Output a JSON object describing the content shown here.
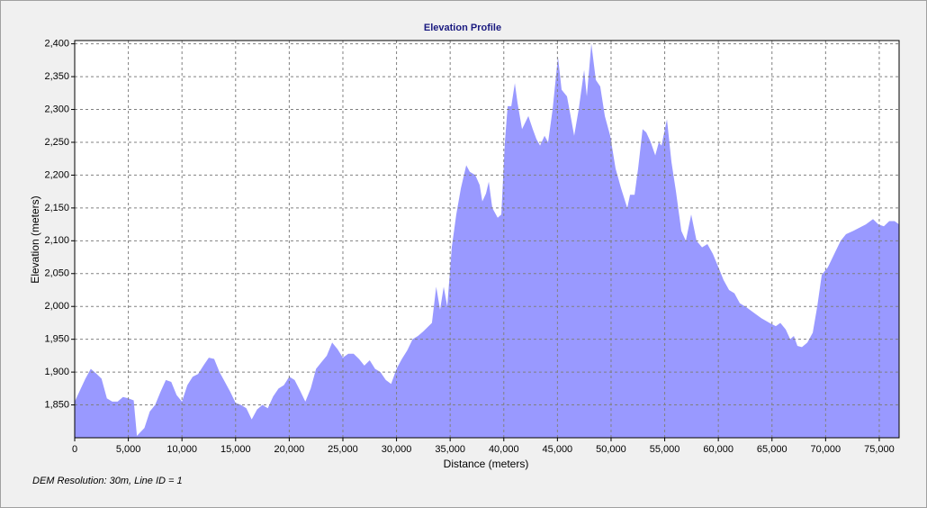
{
  "chart_data": {
    "type": "area",
    "title": "Elevation Profile",
    "x_label": "Distance (meters)",
    "y_label": "Elevation (meters)",
    "note": "DEM Resolution: 30m, Line ID = 1",
    "color": "#9999ff",
    "grid": true,
    "xlim": [
      0,
      76850
    ],
    "ylim": [
      1800,
      2405
    ],
    "xticks": [
      0,
      {
        "value": 5000,
        "label": "5,000"
      },
      {
        "value": 10000,
        "label": "10,000"
      },
      {
        "value": 15000,
        "label": "15,000"
      },
      {
        "value": 20000,
        "label": "20,000"
      },
      {
        "value": 25000,
        "label": "25,000"
      },
      {
        "value": 30000,
        "label": "30,000"
      },
      {
        "value": 35000,
        "label": "35,000"
      },
      {
        "value": 40000,
        "label": "40,000"
      },
      {
        "value": 45000,
        "label": "45,000"
      },
      {
        "value": 50000,
        "label": "50,000"
      },
      {
        "value": 55000,
        "label": "55,000"
      },
      {
        "value": 60000,
        "label": "60,000"
      },
      {
        "value": 65000,
        "label": "65,000"
      },
      {
        "value": 70000,
        "label": "70,000"
      },
      {
        "value": 75000,
        "label": "75,000"
      }
    ],
    "yticks": [
      {
        "value": 1850,
        "label": "1,850"
      },
      {
        "value": 1900,
        "label": "1,900"
      },
      {
        "value": 1950,
        "label": "1,950"
      },
      {
        "value": 2000,
        "label": "2,000"
      },
      {
        "value": 2050,
        "label": "2,050"
      },
      {
        "value": 2100,
        "label": "2,100"
      },
      {
        "value": 2150,
        "label": "2,150"
      },
      {
        "value": 2200,
        "label": "2,200"
      },
      {
        "value": 2250,
        "label": "2,250"
      },
      {
        "value": 2300,
        "label": "2,300"
      },
      {
        "value": 2350,
        "label": "2,350"
      },
      {
        "value": 2400,
        "label": "2,400"
      }
    ],
    "x": [
      0,
      1000,
      1500,
      2000,
      2500,
      3000,
      3500,
      4000,
      4500,
      5000,
      5500,
      5800,
      6500,
      7000,
      7500,
      8000,
      8500,
      9000,
      9500,
      10000,
      10500,
      11000,
      11500,
      12000,
      12500,
      13000,
      13500,
      14000,
      14500,
      15000,
      15500,
      16000,
      16500,
      17000,
      17500,
      18000,
      18500,
      19000,
      19500,
      20000,
      20500,
      21000,
      21500,
      22000,
      22500,
      23000,
      23500,
      24000,
      24500,
      25000,
      25500,
      26000,
      26500,
      27000,
      27500,
      28000,
      28500,
      29000,
      29500,
      30000,
      30500,
      31000,
      31500,
      32000,
      32500,
      33300,
      33700,
      34060,
      34400,
      34730,
      35150,
      35570,
      36000,
      36500,
      36830,
      37340,
      37750,
      38000,
      38340,
      38600,
      38930,
      39430,
      39770,
      40100,
      40360,
      40700,
      41030,
      41280,
      41700,
      42290,
      42700,
      43040,
      43380,
      43800,
      44130,
      44550,
      45050,
      45390,
      45890,
      46230,
      46560,
      46980,
      47490,
      47740,
      48160,
      48580,
      48990,
      49420,
      49920,
      50420,
      50930,
      51510,
      51770,
      52190,
      52520,
      52940,
      53280,
      53700,
      54120,
      54450,
      54700,
      55210,
      55630,
      56050,
      56550,
      56970,
      57470,
      57970,
      58480,
      58980,
      59490,
      60000,
      60490,
      61000,
      61500,
      62000,
      62670,
      63340,
      64020,
      64770,
      65360,
      65780,
      66280,
      66700,
      67040,
      67370,
      67790,
      68300,
      68800,
      69220,
      69640,
      70220,
      70810,
      71400,
      71900,
      72570,
      73160,
      73750,
      74420,
      74920,
      75430,
      75930,
      76430,
      76850
    ],
    "values": [
      1855,
      1890,
      1905,
      1898,
      1890,
      1860,
      1855,
      1855,
      1862,
      1860,
      1857,
      1803,
      1815,
      1840,
      1850,
      1870,
      1888,
      1885,
      1865,
      1855,
      1880,
      1893,
      1897,
      1910,
      1922,
      1920,
      1900,
      1885,
      1870,
      1853,
      1850,
      1845,
      1828,
      1843,
      1850,
      1845,
      1863,
      1875,
      1880,
      1893,
      1888,
      1872,
      1855,
      1875,
      1905,
      1915,
      1925,
      1945,
      1935,
      1922,
      1928,
      1928,
      1920,
      1910,
      1918,
      1905,
      1900,
      1888,
      1882,
      1905,
      1920,
      1933,
      1950,
      1955,
      1962,
      1975,
      2030,
      1995,
      2030,
      2000,
      2090,
      2140,
      2180,
      2215,
      2205,
      2200,
      2185,
      2160,
      2172,
      2190,
      2150,
      2135,
      2140,
      2250,
      2305,
      2305,
      2340,
      2310,
      2270,
      2290,
      2270,
      2255,
      2245,
      2260,
      2250,
      2300,
      2380,
      2330,
      2320,
      2290,
      2260,
      2300,
      2360,
      2320,
      2400,
      2345,
      2335,
      2290,
      2260,
      2210,
      2180,
      2150,
      2170,
      2170,
      2210,
      2270,
      2265,
      2250,
      2230,
      2250,
      2245,
      2285,
      2220,
      2175,
      2115,
      2100,
      2140,
      2100,
      2090,
      2095,
      2080,
      2060,
      2040,
      2025,
      2020,
      2005,
      1998,
      1990,
      1982,
      1975,
      1970,
      1975,
      1965,
      1950,
      1955,
      1940,
      1938,
      1945,
      1960,
      2000,
      2048,
      2060,
      2080,
      2100,
      2110,
      2115,
      2120,
      2125,
      2133,
      2125,
      2122,
      2130,
      2130,
      2125
    ]
  }
}
